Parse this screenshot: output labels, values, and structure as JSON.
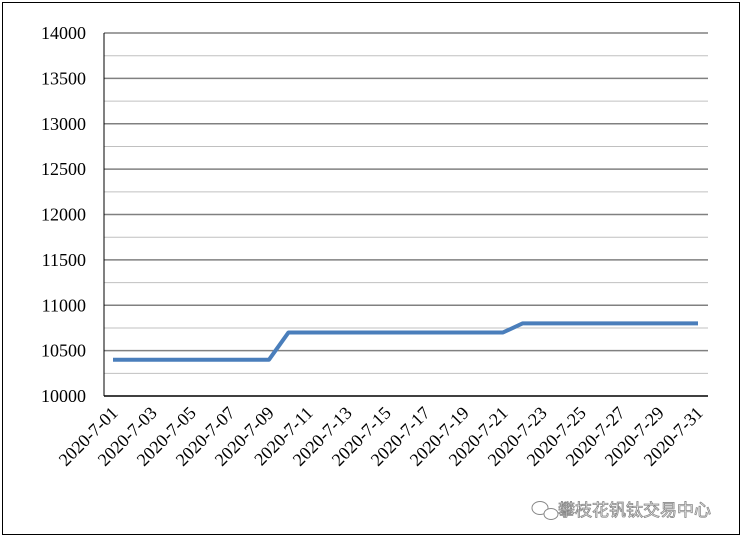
{
  "chart_data": {
    "type": "line",
    "title": "",
    "xlabel": "",
    "ylabel": "",
    "ylim": [
      10000,
      14000
    ],
    "yticks": [
      10000,
      10500,
      11000,
      11500,
      12000,
      12500,
      13000,
      13500,
      14000
    ],
    "minor_grid_step": 250,
    "grid": true,
    "legend": "none",
    "x": [
      "2020-7-01",
      "2020-7-02",
      "2020-7-03",
      "2020-7-04",
      "2020-7-05",
      "2020-7-06",
      "2020-7-07",
      "2020-7-08",
      "2020-7-09",
      "2020-7-10",
      "2020-7-11",
      "2020-7-12",
      "2020-7-13",
      "2020-7-14",
      "2020-7-15",
      "2020-7-16",
      "2020-7-17",
      "2020-7-18",
      "2020-7-19",
      "2020-7-20",
      "2020-7-21",
      "2020-7-22",
      "2020-7-23",
      "2020-7-24",
      "2020-7-25",
      "2020-7-26",
      "2020-7-27",
      "2020-7-28",
      "2020-7-29",
      "2020-7-30",
      "2020-7-31"
    ],
    "xtick_labels": [
      "2020-7-01",
      "2020-7-03",
      "2020-7-05",
      "2020-7-07",
      "2020-7-09",
      "2020-7-11",
      "2020-7-13",
      "2020-7-15",
      "2020-7-17",
      "2020-7-19",
      "2020-7-21",
      "2020-7-23",
      "2020-7-25",
      "2020-7-27",
      "2020-7-29",
      "2020-7-31"
    ],
    "series": [
      {
        "values": [
          10400,
          10400,
          10400,
          10400,
          10400,
          10400,
          10400,
          10400,
          10400,
          10700,
          10700,
          10700,
          10700,
          10700,
          10700,
          10700,
          10700,
          10700,
          10700,
          10700,
          10700,
          10800,
          10800,
          10800,
          10800,
          10800,
          10800,
          10800,
          10800,
          10800,
          10800
        ],
        "color": "#4a7ebb"
      }
    ]
  },
  "watermark": "攀枝花钒钛交易中心",
  "colors": {
    "major_grid": "#808080",
    "minor_grid": "#c0c0c0",
    "border": "#000000"
  }
}
